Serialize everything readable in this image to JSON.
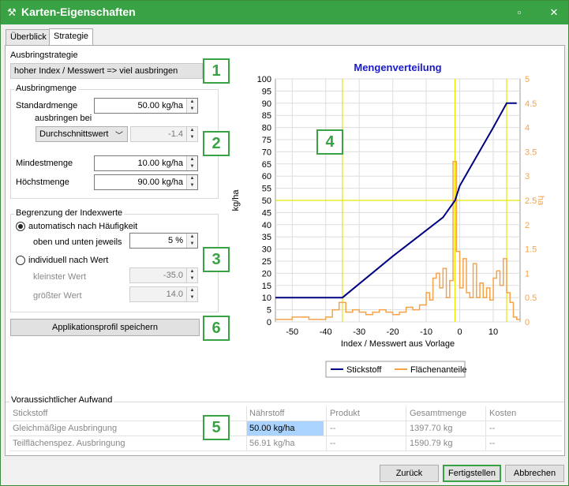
{
  "window": {
    "title": "Karten-Eigenschaften",
    "minimize_glyph": "▫",
    "close_glyph": "✕",
    "icon": "tractor-icon"
  },
  "tabs": [
    {
      "label": "Überblick"
    },
    {
      "label": "Strategie"
    }
  ],
  "strategy": {
    "label": "Ausbringstrategie",
    "value": "hoher Index / Messwert => viel ausbringen"
  },
  "amount": {
    "group_label": "Ausbringmenge",
    "standard_label": "Standardmenge",
    "standard_value": "50.00 kg/ha",
    "apply_at_label": "ausbringen bei",
    "apply_at_option": "Durchschnittswert",
    "apply_at_value": "-1.4",
    "min_label": "Mindestmenge",
    "min_value": "10.00 kg/ha",
    "max_label": "Höchstmenge",
    "max_value": "90.00 kg/ha"
  },
  "limits": {
    "group_label": "Begrenzung der Indexwerte",
    "auto_label": "automatisch nach Häufigkeit",
    "auto_sub_label": "oben und unten jeweils",
    "auto_value": "5 %",
    "manual_label": "individuell nach Wert",
    "smallest_label": "kleinster Wert",
    "smallest_value": "-35.0",
    "largest_label": "größter Wert",
    "largest_value": "14.0"
  },
  "save_profile_button": "Applikationsprofil speichern",
  "badges": [
    "1",
    "2",
    "3",
    "4",
    "5",
    "6"
  ],
  "effort": {
    "group_label": "Voraussichtlicher Aufwand",
    "headers": [
      "Stickstoff",
      "Nährstoff",
      "Produkt",
      "Gesamtmenge",
      "Kosten"
    ],
    "rows": [
      [
        "Gleichmäßige Ausbringung",
        "50.00 kg/ha",
        "--",
        "1397.70 kg",
        "--"
      ],
      [
        "Teilflächenspez. Ausbringung",
        "56.91 kg/ha",
        "--",
        "1590.79 kg",
        "--"
      ]
    ]
  },
  "buttons": {
    "back": "Zurück",
    "finish": "Fertigstellen",
    "cancel": "Abbrechen"
  },
  "colors": {
    "accent": "#39a245",
    "nitrogen": "#000080",
    "area": "#f5a34a",
    "guide": "#e6e600",
    "highlight": "#aad4ff"
  },
  "chart_data": {
    "type": "line",
    "title": "Mengenverteilung",
    "xlabel": "Index / Messwert aus Vorlage",
    "ylabel_left": "kg/ha",
    "ylabel_right": "ha",
    "xlim": [
      -55,
      18
    ],
    "ylim_left": [
      0,
      100
    ],
    "ylim_right": [
      0,
      5
    ],
    "x_ticks": [
      -50,
      -40,
      -30,
      -20,
      -10,
      0,
      10
    ],
    "y_ticks_left": [
      0,
      5,
      10,
      15,
      20,
      25,
      30,
      35,
      40,
      45,
      50,
      55,
      60,
      65,
      70,
      75,
      80,
      85,
      90,
      95,
      100
    ],
    "y_ticks_right": [
      "0",
      "0.5",
      "1",
      "1.5",
      "2",
      "2.5",
      "3",
      "3.5",
      "4",
      "4.5",
      "5"
    ],
    "guide_lines_x": [
      -35,
      -1.4,
      14
    ],
    "guide_line_y": 50,
    "legend": "bottom",
    "series": [
      {
        "name": "Stickstoff",
        "axis": "left",
        "x": [
          -55,
          -35,
          -20,
          -5,
          -1.4,
          0,
          5,
          10,
          14,
          17
        ],
        "y": [
          10,
          10,
          27,
          43,
          50,
          56,
          68,
          80,
          90,
          90
        ]
      },
      {
        "name": "Flächenanteile",
        "axis": "right",
        "step": true,
        "x": [
          -55,
          -50,
          -45,
          -40,
          -38,
          -36,
          -34,
          -32,
          -30,
          -28,
          -26,
          -24,
          -22,
          -20,
          -18,
          -16,
          -14,
          -12,
          -10,
          -9,
          -8,
          -7,
          -6,
          -5,
          -4,
          -3,
          -2,
          -1,
          0,
          1,
          2,
          3,
          4,
          5,
          6,
          7,
          8,
          9,
          10,
          11,
          12,
          13,
          14,
          15,
          16,
          17
        ],
        "y": [
          0.05,
          0.1,
          0.05,
          0.1,
          0.25,
          0.4,
          0.2,
          0.25,
          0.2,
          0.15,
          0.2,
          0.25,
          0.2,
          0.15,
          0.2,
          0.3,
          0.25,
          0.35,
          0.6,
          0.45,
          0.9,
          1.0,
          0.7,
          1.1,
          0.5,
          0.85,
          3.3,
          1.45,
          0.7,
          1.3,
          0.6,
          0.5,
          1.2,
          0.5,
          0.8,
          0.5,
          0.7,
          0.45,
          0.9,
          1.05,
          0.75,
          1.3,
          0.6,
          0.4,
          0.1,
          0.05
        ]
      }
    ]
  }
}
